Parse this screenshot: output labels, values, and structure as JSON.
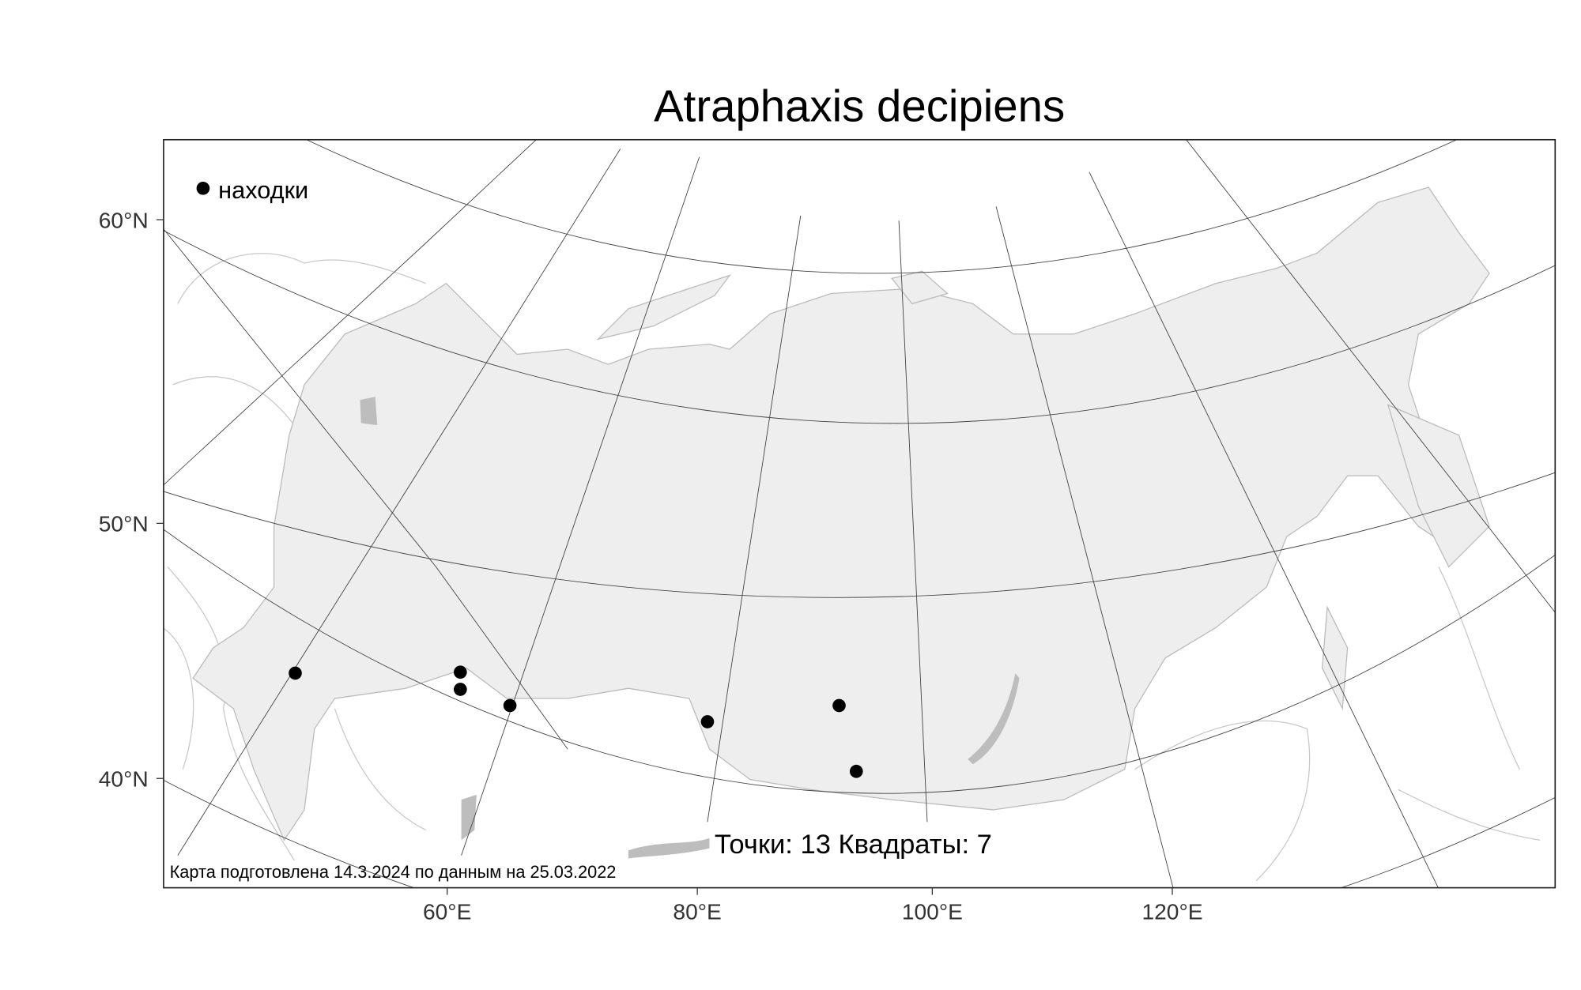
{
  "title": "Atraphaxis decipiens",
  "legend": {
    "marker": "filled-circle",
    "label": "находки"
  },
  "stats": "Точки: 13 Квадраты: 7",
  "credit": "Карта подготовлена 14.3.2024 по данным на 25.03.2022",
  "axes": {
    "lat_ticks": [
      "60°N",
      "50°N",
      "40°N"
    ],
    "lon_ticks": [
      "60°E",
      "80°E",
      "100°E",
      "120°E"
    ]
  },
  "colors": {
    "land": "#eeeeee",
    "water": "#bdbdbd",
    "points": "#000000"
  },
  "points": [
    {
      "label": "find-1"
    },
    {
      "label": "find-2"
    },
    {
      "label": "find-3"
    },
    {
      "label": "find-4"
    },
    {
      "label": "find-5"
    },
    {
      "label": "find-6"
    },
    {
      "label": "find-7"
    }
  ]
}
